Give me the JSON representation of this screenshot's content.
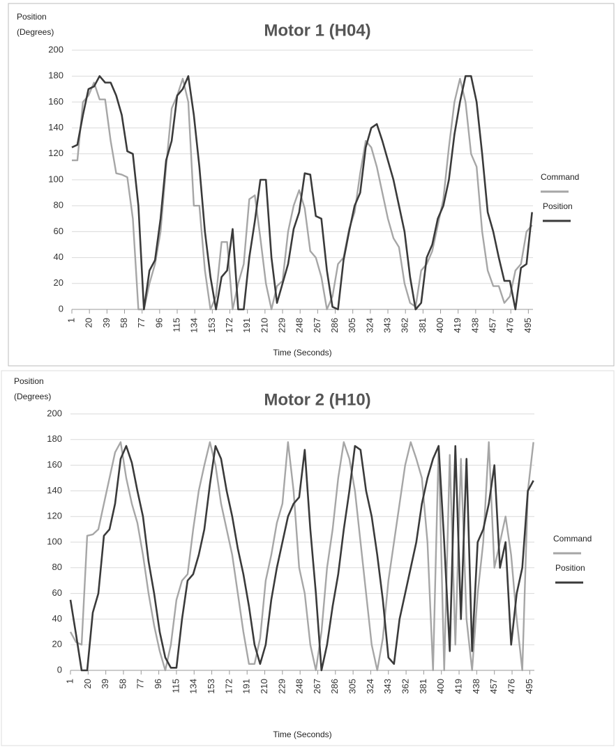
{
  "chart_data": [
    {
      "type": "line",
      "title": "Motor 1 (H04)",
      "ylabel": [
        "Position",
        "(Degrees)"
      ],
      "xlabel": "Time (Seconds)",
      "x": [
        1,
        7,
        13,
        19,
        25,
        31,
        37,
        43,
        49,
        55,
        61,
        67,
        73,
        79,
        85,
        91,
        97,
        103,
        109,
        115,
        121,
        127,
        133,
        139,
        145,
        151,
        157,
        163,
        169,
        175,
        181,
        187,
        193,
        199,
        205,
        211,
        217,
        223,
        229,
        235,
        241,
        247,
        253,
        259,
        265,
        271,
        277,
        283,
        289,
        295,
        301,
        307,
        313,
        319,
        325,
        331,
        337,
        343,
        349,
        355,
        361,
        367,
        373,
        379,
        385,
        391,
        397,
        403,
        409,
        415,
        421,
        427,
        433,
        439,
        445,
        451,
        457,
        463,
        469,
        475,
        481,
        487,
        493,
        499
      ],
      "xlim": [
        1,
        500
      ],
      "xticks": [
        1,
        20,
        39,
        58,
        77,
        96,
        115,
        134,
        153,
        172,
        191,
        210,
        229,
        248,
        267,
        286,
        305,
        324,
        343,
        362,
        381,
        400,
        419,
        438,
        457,
        476,
        495
      ],
      "ylim": [
        0,
        200
      ],
      "yticks": [
        0,
        20,
        40,
        60,
        80,
        100,
        120,
        140,
        160,
        180,
        200
      ],
      "grid": true,
      "series": [
        {
          "name": "Command",
          "color": "#a6a6a6",
          "values": [
            115,
            115,
            160,
            165,
            175,
            162,
            162,
            130,
            105,
            104,
            102,
            70,
            0,
            0,
            20,
            35,
            60,
            110,
            155,
            165,
            178,
            160,
            80,
            80,
            30,
            0,
            10,
            52,
            52,
            0,
            20,
            35,
            85,
            88,
            55,
            20,
            0,
            18,
            22,
            60,
            80,
            92,
            78,
            45,
            40,
            25,
            0,
            10,
            35,
            40,
            62,
            75,
            105,
            130,
            125,
            110,
            90,
            70,
            55,
            48,
            20,
            5,
            2,
            30,
            35,
            45,
            65,
            85,
            125,
            160,
            178,
            160,
            120,
            110,
            60,
            30,
            18,
            18,
            5,
            10,
            30,
            35,
            60,
            65
          ]
        },
        {
          "name": "Position",
          "color": "#3a3a3a",
          "values": [
            125,
            127,
            150,
            170,
            172,
            180,
            175,
            175,
            165,
            150,
            122,
            120,
            80,
            0,
            30,
            38,
            70,
            115,
            130,
            165,
            170,
            180,
            150,
            110,
            60,
            25,
            0,
            25,
            30,
            62,
            0,
            0,
            40,
            68,
            100,
            100,
            40,
            5,
            20,
            35,
            62,
            75,
            105,
            104,
            72,
            70,
            30,
            2,
            0,
            38,
            60,
            80,
            90,
            125,
            140,
            143,
            130,
            115,
            100,
            80,
            60,
            25,
            0,
            5,
            40,
            50,
            70,
            80,
            100,
            135,
            160,
            180,
            180,
            160,
            120,
            75,
            60,
            40,
            22,
            22,
            0,
            32,
            35,
            75
          ]
        }
      ]
    },
    {
      "type": "line",
      "title": "Motor 2 (H10)",
      "ylabel": [
        "Position",
        "(Degrees)"
      ],
      "xlabel": "Time (Seconds)",
      "x": [
        1,
        7,
        13,
        19,
        25,
        31,
        37,
        43,
        49,
        55,
        61,
        67,
        73,
        79,
        85,
        91,
        97,
        103,
        109,
        115,
        121,
        127,
        133,
        139,
        145,
        151,
        157,
        163,
        169,
        175,
        181,
        187,
        193,
        199,
        205,
        211,
        217,
        223,
        229,
        235,
        241,
        247,
        253,
        259,
        265,
        271,
        277,
        283,
        289,
        295,
        301,
        307,
        313,
        319,
        325,
        331,
        337,
        343,
        349,
        355,
        361,
        367,
        373,
        379,
        385,
        391,
        397,
        403,
        409,
        415,
        421,
        427,
        433,
        439,
        445,
        451,
        457,
        463,
        469,
        475,
        481,
        487,
        493,
        499
      ],
      "xlim": [
        1,
        500
      ],
      "xticks": [
        1,
        20,
        39,
        58,
        77,
        96,
        115,
        134,
        153,
        172,
        191,
        210,
        229,
        248,
        267,
        286,
        305,
        324,
        343,
        362,
        381,
        400,
        419,
        438,
        457,
        476,
        495
      ],
      "ylim": [
        0,
        200
      ],
      "yticks": [
        0,
        20,
        40,
        60,
        80,
        100,
        120,
        140,
        160,
        180,
        200
      ],
      "grid": true,
      "series": [
        {
          "name": "Command",
          "color": "#a6a6a6",
          "values": [
            30,
            22,
            20,
            105,
            106,
            110,
            130,
            150,
            170,
            178,
            150,
            130,
            115,
            90,
            60,
            35,
            15,
            0,
            20,
            55,
            70,
            75,
            110,
            140,
            160,
            178,
            160,
            130,
            110,
            90,
            60,
            30,
            5,
            5,
            25,
            70,
            90,
            115,
            130,
            178,
            140,
            80,
            60,
            20,
            0,
            30,
            80,
            110,
            150,
            178,
            165,
            140,
            100,
            60,
            20,
            0,
            25,
            70,
            100,
            130,
            160,
            178,
            165,
            150,
            100,
            0,
            175,
            0,
            168,
            20,
            165,
            40,
            0,
            60,
            100,
            178,
            80,
            100,
            120,
            90,
            40,
            0,
            140,
            178
          ]
        },
        {
          "name": "Position",
          "color": "#3a3a3a",
          "values": [
            55,
            28,
            0,
            0,
            45,
            60,
            105,
            110,
            130,
            165,
            175,
            162,
            140,
            120,
            85,
            60,
            30,
            10,
            2,
            2,
            40,
            70,
            75,
            90,
            110,
            145,
            175,
            165,
            140,
            120,
            95,
            75,
            50,
            20,
            5,
            20,
            55,
            80,
            100,
            120,
            130,
            135,
            172,
            110,
            60,
            0,
            20,
            50,
            75,
            110,
            140,
            175,
            172,
            140,
            120,
            90,
            55,
            10,
            5,
            40,
            60,
            80,
            100,
            130,
            150,
            165,
            175,
            100,
            15,
            175,
            40,
            165,
            15,
            100,
            110,
            130,
            160,
            80,
            100,
            20,
            60,
            80,
            140,
            148
          ]
        }
      ]
    }
  ]
}
